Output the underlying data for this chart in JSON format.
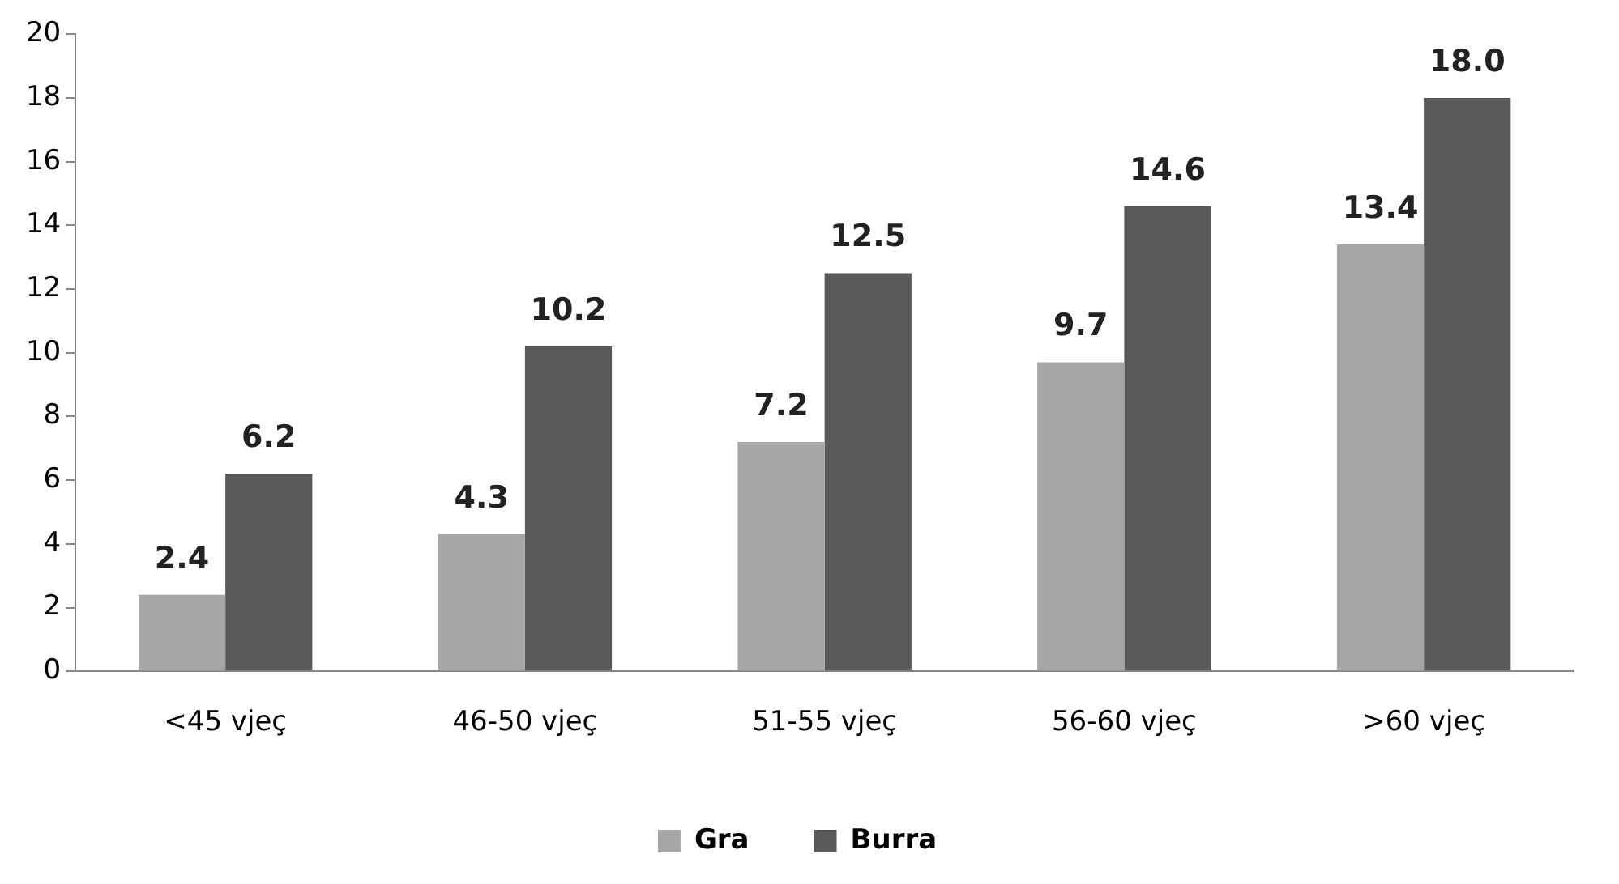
{
  "chart_data": {
    "type": "bar",
    "categories": [
      "<45 vjeç",
      "46-50 vjeç",
      "51-55 vjeç",
      "56-60 vjeç",
      ">60 vjeç"
    ],
    "series": [
      {
        "name": "Gra",
        "color": "#a6a6a6",
        "values": [
          2.4,
          4.3,
          7.2,
          9.7,
          13.4
        ],
        "value_labels": [
          "2.4",
          "4.3",
          "7.2",
          "9.7",
          "13.4"
        ]
      },
      {
        "name": "Burra",
        "color": "#595959",
        "values": [
          6.2,
          10.2,
          12.5,
          14.6,
          18.0
        ],
        "value_labels": [
          "6.2",
          "10.2",
          "12.5",
          "14.6",
          "18.0"
        ]
      }
    ],
    "ylim": [
      0,
      20
    ],
    "yticks": [
      0,
      2,
      4,
      6,
      8,
      10,
      12,
      14,
      16,
      18,
      20
    ],
    "grid": false,
    "legend": "bottom"
  }
}
